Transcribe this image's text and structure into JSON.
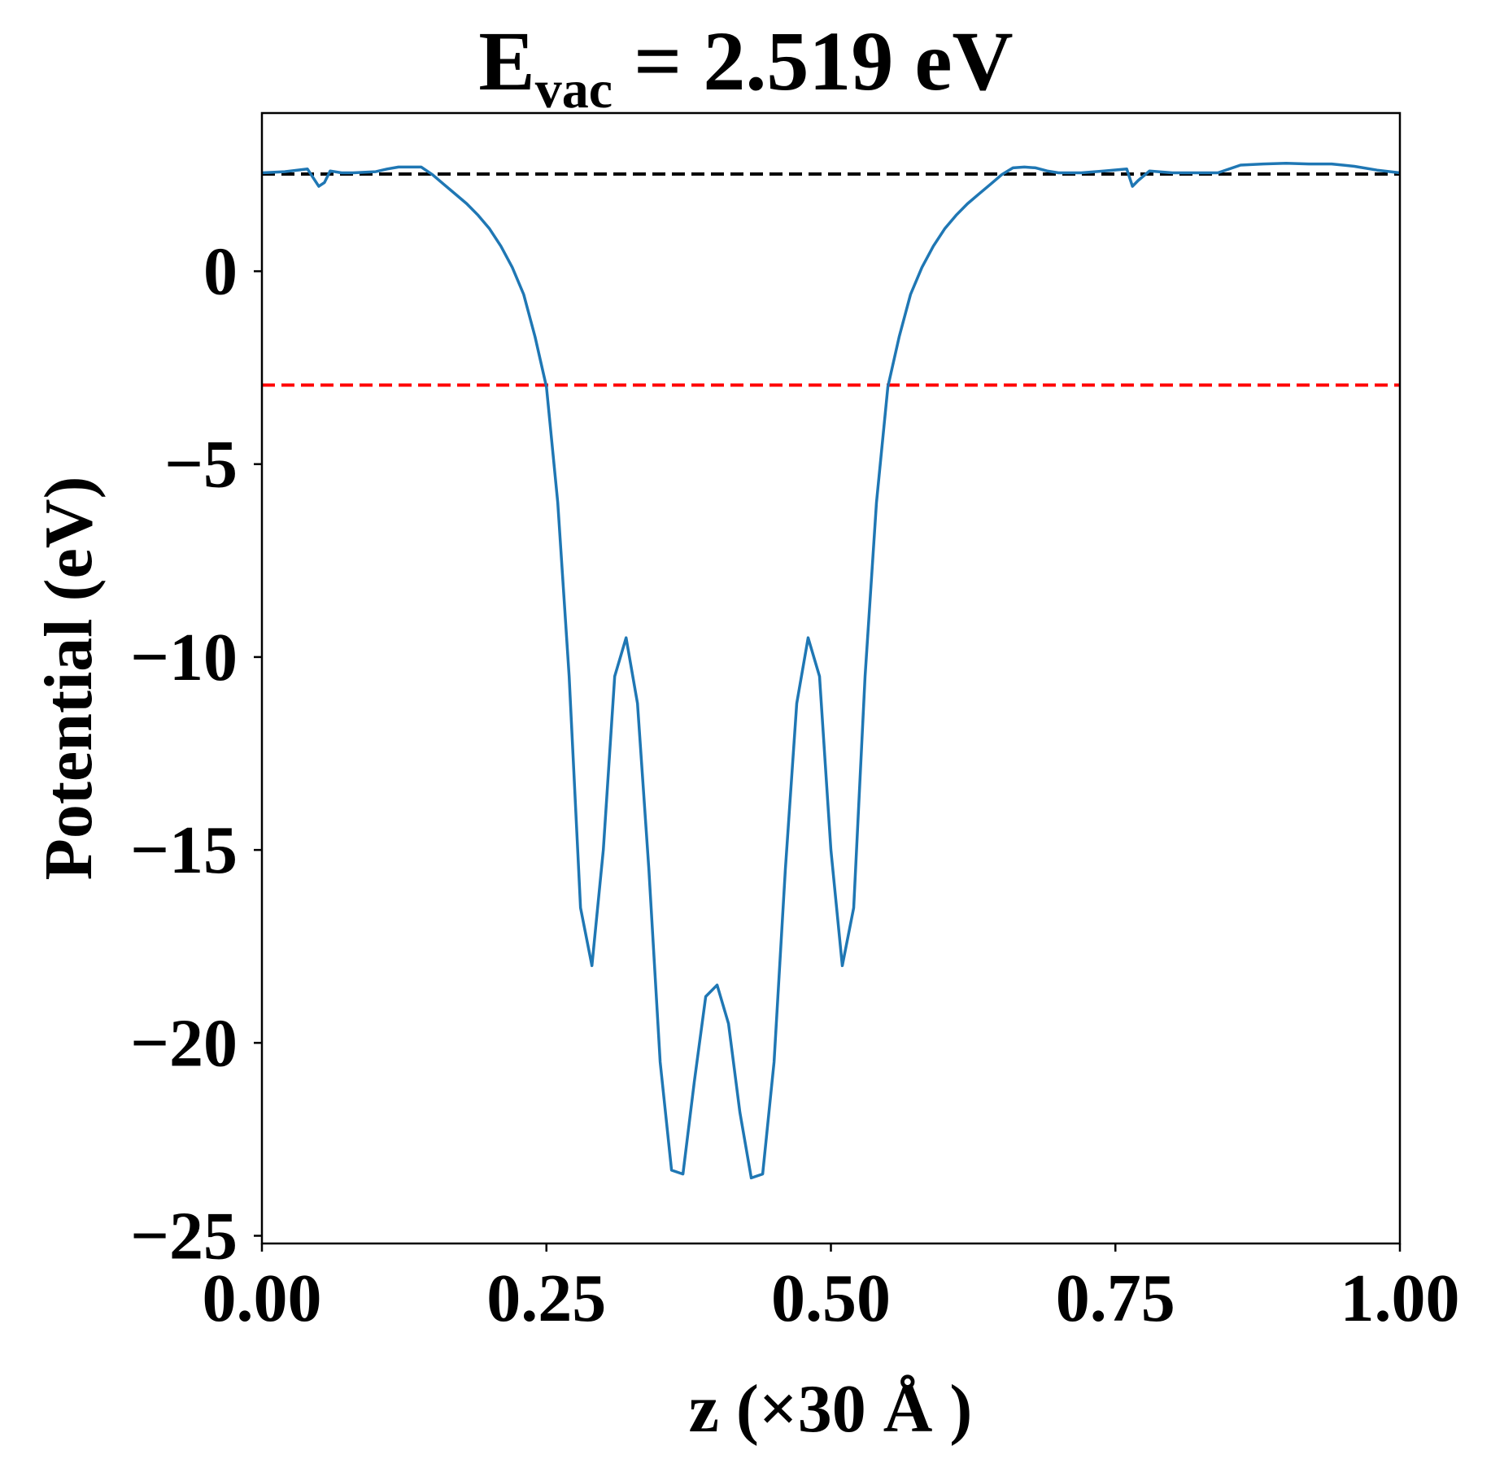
{
  "chart_data": {
    "type": "line",
    "title": {
      "main": "E",
      "subscript": "vac",
      "rest": " = 2.519 eV"
    },
    "xlabel": "z (×30 Å )",
    "ylabel": "Potential (eV)",
    "xlim": [
      0.0,
      1.0
    ],
    "ylim": [
      -25.2,
      4.1
    ],
    "x_ticks": [
      0.0,
      0.25,
      0.5,
      0.75,
      1.0
    ],
    "x_tick_labels": [
      "0.00",
      "0.25",
      "0.50",
      "0.75",
      "1.00"
    ],
    "y_ticks": [
      0,
      -5,
      -10,
      -15,
      -20,
      -25
    ],
    "y_tick_labels": [
      "0",
      "−5",
      "−10",
      "−15",
      "−20",
      "−25"
    ],
    "grid": false,
    "series": [
      {
        "color": "#1f77b4",
        "x": [
          0.0,
          0.02,
          0.04,
          0.05,
          0.055,
          0.06,
          0.07,
          0.08,
          0.1,
          0.11,
          0.12,
          0.13,
          0.14,
          0.15,
          0.16,
          0.17,
          0.18,
          0.19,
          0.2,
          0.21,
          0.22,
          0.23,
          0.24,
          0.25,
          0.26,
          0.27,
          0.28,
          0.29,
          0.3,
          0.31,
          0.32,
          0.33,
          0.34,
          0.35,
          0.36,
          0.37,
          0.38,
          0.39,
          0.4,
          0.41,
          0.42,
          0.43,
          0.44,
          0.45,
          0.46,
          0.47,
          0.48,
          0.49,
          0.5,
          0.51,
          0.52,
          0.53,
          0.54,
          0.55,
          0.56,
          0.57,
          0.58,
          0.59,
          0.6,
          0.61,
          0.62,
          0.63,
          0.64,
          0.65,
          0.66,
          0.67,
          0.68,
          0.69,
          0.7,
          0.72,
          0.74,
          0.76,
          0.765,
          0.77,
          0.78,
          0.8,
          0.84,
          0.86,
          0.88,
          0.9,
          0.92,
          0.94,
          0.96,
          0.98,
          1.0
        ],
        "y": [
          2.55,
          2.58,
          2.65,
          2.2,
          2.3,
          2.6,
          2.55,
          2.55,
          2.58,
          2.65,
          2.7,
          2.7,
          2.7,
          2.5,
          2.25,
          2.0,
          1.75,
          1.45,
          1.1,
          0.65,
          0.1,
          -0.6,
          -1.7,
          -3.0,
          -6.0,
          -10.5,
          -16.5,
          -18.0,
          -15.0,
          -10.5,
          -9.5,
          -11.2,
          -15.5,
          -20.5,
          -23.3,
          -23.4,
          -21.0,
          -18.8,
          -18.5,
          -19.5,
          -21.8,
          -23.5,
          -23.4,
          -20.5,
          -15.5,
          -11.2,
          -9.5,
          -10.5,
          -15.0,
          -18.0,
          -16.5,
          -10.5,
          -6.0,
          -3.0,
          -1.7,
          -0.6,
          0.1,
          0.65,
          1.1,
          1.45,
          1.75,
          2.0,
          2.25,
          2.5,
          2.68,
          2.7,
          2.68,
          2.6,
          2.55,
          2.55,
          2.6,
          2.65,
          2.2,
          2.35,
          2.6,
          2.55,
          2.55,
          2.75,
          2.78,
          2.8,
          2.78,
          2.78,
          2.72,
          2.62,
          2.55
        ]
      }
    ],
    "reference_lines": [
      {
        "y": 2.519,
        "color": "#000000",
        "style": "dashed"
      },
      {
        "y": -2.95,
        "color": "#ff0000",
        "style": "dashed"
      }
    ]
  }
}
